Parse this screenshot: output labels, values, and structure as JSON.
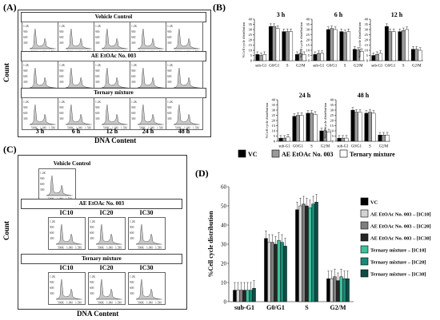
{
  "panels": {
    "a": "(A)",
    "b": "(B)",
    "c": "(C)",
    "d": "(D)"
  },
  "panel_a": {
    "bands": [
      "Vehicle Control",
      "AE EtOAc No. 003",
      "Ternary mixture"
    ],
    "columns": [
      "3 h",
      "6 h",
      "12 h",
      "24 h",
      "48 h"
    ],
    "y_axis": "Count",
    "x_axis": "DNA Content"
  },
  "panel_c": {
    "vc_title": "Vehicle Control",
    "bands": [
      "AE EtOAc No. 003",
      "Ternary mixture"
    ],
    "columns": [
      "IC10",
      "IC20",
      "IC30"
    ],
    "y_axis": "Count",
    "x_axis": "DNA Content"
  },
  "hist_ticks": {
    "y": [
      "1.2K",
      "900",
      "600",
      "300"
    ],
    "x": [
      "500K",
      "1.0M",
      "1.5M"
    ]
  },
  "colors": {
    "vc": "#000000",
    "ae": "#9a9a9a",
    "tm": "#ffffff",
    "ae_ic10": "#d3d3d3",
    "ae_ic20": "#7f7f7f",
    "ae_ic30": "#262626",
    "tm_ic10": "#3fbf9a",
    "tm_ic20": "#178a77",
    "tm_ic30": "#0e4d45",
    "hist_fill": "#c8c8c8"
  },
  "chart_data": [
    {
      "type": "bar",
      "title": "3 h",
      "categories": [
        "sub-G1",
        "G0/G1",
        "S",
        "G2/M"
      ],
      "ylabel": "%Cell cycle distribution",
      "ylim": [
        0,
        40
      ],
      "yticks": [
        0,
        5,
        10,
        15,
        20,
        25,
        30,
        35,
        40
      ],
      "series": [
        {
          "name": "VC",
          "values": [
            6,
            33,
            28,
            6
          ]
        },
        {
          "name": "AE EtOAc No. 003",
          "values": [
            5,
            33,
            28,
            7
          ]
        },
        {
          "name": "Ternary mixture",
          "values": [
            6,
            31,
            28,
            6
          ]
        }
      ]
    },
    {
      "type": "bar",
      "title": "6 h",
      "categories": [
        "sub-G1",
        "G0/G1",
        "S",
        "G2/M"
      ],
      "ylabel": "%Cell cycle distribution",
      "ylim": [
        0,
        40
      ],
      "yticks": [
        0,
        5,
        10,
        15,
        20,
        25,
        30,
        35,
        40
      ],
      "series": [
        {
          "name": "VC",
          "values": [
            6,
            30,
            28,
            11
          ]
        },
        {
          "name": "AE EtOAc No. 003",
          "values": [
            7,
            31,
            27,
            10
          ]
        },
        {
          "name": "Ternary mixture",
          "values": [
            7,
            30,
            28,
            9
          ]
        }
      ]
    },
    {
      "type": "bar",
      "title": "12 h",
      "categories": [
        "sub-G1",
        "G0/G1",
        "S",
        "G2/M"
      ],
      "ylabel": "%Cell cycle distribution",
      "ylim": [
        0,
        40
      ],
      "yticks": [
        0,
        5,
        10,
        15,
        20,
        25,
        30,
        35,
        40
      ],
      "series": [
        {
          "name": "VC",
          "values": [
            5,
            33,
            28,
            11
          ]
        },
        {
          "name": "AE EtOAc No. 003",
          "values": [
            6,
            28,
            29,
            11
          ]
        },
        {
          "name": "Ternary mixture",
          "values": [
            7,
            28,
            30,
            10
          ]
        }
      ]
    },
    {
      "type": "bar",
      "title": "24 h",
      "categories": [
        "sub-G1",
        "G0/G1",
        "S",
        "G2/M"
      ],
      "ylabel": "%Cell cycle distribution",
      "ylim": [
        0,
        40
      ],
      "yticks": [
        0,
        5,
        10,
        15,
        20,
        25,
        30,
        35,
        40
      ],
      "series": [
        {
          "name": "VC",
          "values": [
            3,
            24,
            27,
            10
          ]
        },
        {
          "name": "AE EtOAc No. 003",
          "values": [
            3,
            25,
            27,
            10
          ]
        },
        {
          "name": "Ternary mixture",
          "values": [
            4,
            25,
            26,
            9
          ]
        }
      ]
    },
    {
      "type": "bar",
      "title": "48 h",
      "categories": [
        "sub-G1",
        "G0/G1",
        "S",
        "G2/M"
      ],
      "ylabel": "%Cell cycle distribution",
      "ylim": [
        0,
        40
      ],
      "yticks": [
        0,
        5,
        10,
        15,
        20,
        25,
        30,
        35,
        40
      ],
      "series": [
        {
          "name": "VC",
          "values": [
            3,
            30,
            27,
            6
          ]
        },
        {
          "name": "AE EtOAc No. 003",
          "values": [
            3,
            28,
            28,
            6
          ]
        },
        {
          "name": "Ternary mixture",
          "values": [
            3,
            28,
            27,
            6
          ]
        }
      ]
    },
    {
      "type": "bar",
      "title": "",
      "categories": [
        "sub-G1",
        "G0/G1",
        "S",
        "G2/M"
      ],
      "ylabel": "%Cell cycle distribution",
      "ylim": [
        0,
        60
      ],
      "yticks": [
        0,
        10,
        20,
        30,
        40,
        50,
        60
      ],
      "series": [
        {
          "name": "VC",
          "values": [
            6,
            33,
            48,
            12
          ]
        },
        {
          "name": "AE EtOAc No. 003 – [IC10]",
          "values": [
            6,
            31,
            50,
            12
          ]
        },
        {
          "name": "AE EtOAc No. 003 – [IC20]",
          "values": [
            6,
            31,
            51,
            13
          ]
        },
        {
          "name": "AE EtOAc No. 003 – [IC30]",
          "values": [
            6,
            30,
            50,
            11
          ]
        },
        {
          "name": "Ternary mixture – [IC10]",
          "values": [
            6,
            32,
            49,
            13
          ]
        },
        {
          "name": "Ternary mixture – [IC20]",
          "values": [
            6,
            31,
            51,
            12
          ]
        },
        {
          "name": "Ternary mixture – [IC30]",
          "values": [
            7,
            29,
            52,
            12
          ]
        }
      ]
    }
  ],
  "legend_b": [
    "VC",
    "AE EtOAc No. 003",
    "Ternary mixture"
  ],
  "legend_d": [
    "VC",
    "AE EtOAc No. 003 – [IC10]",
    "AE EtOAc No. 003 – [IC20]",
    "AE EtOAc No. 003 – [IC30]",
    "Ternary mixture – [IC10]",
    "Ternary mixture – [IC20]",
    "Ternary mixture – [IC30]"
  ]
}
